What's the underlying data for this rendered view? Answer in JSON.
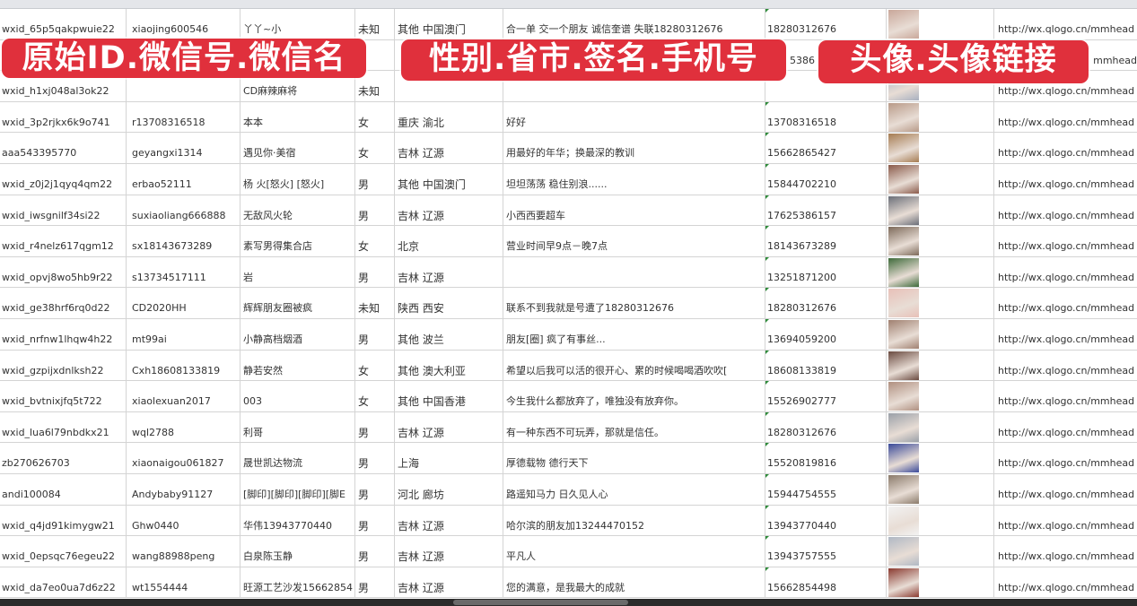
{
  "overlays": [
    "原始ID.微信号.微信名",
    "性别.省市.签名.手机号",
    "头像.头像链接"
  ],
  "link_text": "http://wx.qlogo.cn/mmhead",
  "colors": {
    "overlay": "#e0303c",
    "grid": "#d4d4d4",
    "text": "#333333"
  },
  "rows": [
    {
      "id": "wxid_65p5qakpwuie22",
      "wechat": "xiaojing600546",
      "name": "丫丫~小",
      "gender": "未知",
      "region": "其他 中国澳门",
      "signature": "合一单 交一个朋友 诚信奎谱 失联18280312676",
      "phone": "18280312676",
      "avatar": "#c9a79a"
    },
    {
      "id": "",
      "wechat": "",
      "name": "",
      "gender": "",
      "region": "",
      "signature": "",
      "phone": "5386",
      "avatar": "#7a8fb0"
    },
    {
      "id": "wxid_h1xj048al3ok22",
      "wechat": "",
      "name": "CD麻辣麻将",
      "gender": "未知",
      "region": "",
      "signature": "",
      "phone": "",
      "avatar": "#a8b0c0"
    },
    {
      "id": "wxid_3p2rjkx6k9o741",
      "wechat": "r13708316518",
      "name": "本本",
      "gender": "女",
      "region": "重庆 渝北",
      "signature": "好好",
      "phone": "13708316518",
      "avatar": "#b89a88"
    },
    {
      "id": "aaa543395770",
      "wechat": "geyangxi1314",
      "name": "遇见你·美宿",
      "gender": "女",
      "region": "吉林 辽源",
      "signature": "用最好的年华；换最深的教训",
      "phone": "15662865427",
      "avatar": "#a67c52"
    },
    {
      "id": "wxid_z0j2j1qyq4qm22",
      "wechat": "erbao52111",
      "name": "杨 火[怒火] [怒火]",
      "gender": "男",
      "region": "其他 中国澳门",
      "signature": "坦坦荡荡 稳住别浪......",
      "phone": "15844702210",
      "avatar": "#8a5a4a"
    },
    {
      "id": "wxid_iwsgnilf34si22",
      "wechat": "suxiaoliang666888",
      "name": "无敌风火轮",
      "gender": "男",
      "region": "吉林 辽源",
      "signature": "小西西要超车",
      "phone": "17625386157",
      "avatar": "#6a6e78"
    },
    {
      "id": "wxid_r4nelz617qgm12",
      "wechat": "sx18143673289",
      "name": "素写男得集合店",
      "gender": "女",
      "region": "北京",
      "signature": "营业时间早9点－晚7点",
      "phone": "18143673289",
      "avatar": "#7d6a5a"
    },
    {
      "id": "wxid_opvj8wo5hb9r22",
      "wechat": "s13734517111",
      "name": "岩",
      "gender": "男",
      "region": "吉林 辽源",
      "signature": "",
      "phone": "13251871200",
      "avatar": "#3e6a3a"
    },
    {
      "id": "wxid_ge38hrf6rq0d22",
      "wechat": "CD2020HH",
      "name": "辉辉朋友圈被疯",
      "gender": "未知",
      "region": "陕西 西安",
      "signature": "联系不到我就是号遭了18280312676",
      "phone": "18280312676",
      "avatar": "#e8c0b8"
    },
    {
      "id": "wxid_nrfnw1lhqw4h22",
      "wechat": "mt99ai",
      "name": "小静高档烟酒",
      "gender": "男",
      "region": "其他 波兰",
      "signature": "朋友[圈] 疯了有事丝...",
      "phone": "13694059200",
      "avatar": "#a08070"
    },
    {
      "id": "wxid_gzpijxdnlksh22",
      "wechat": "Cxh18608133819",
      "name": "静若安然",
      "gender": "女",
      "region": "其他 澳大利亚",
      "signature": "希望以后我可以活的很开心、累的时候喝喝酒吹吹[",
      "phone": "18608133819",
      "avatar": "#6a4a40"
    },
    {
      "id": "wxid_bvtnixjfq5t722",
      "wechat": "xiaolexuan2017",
      "name": "003",
      "gender": "女",
      "region": "其他 中国香港",
      "signature": "今生我什么都放弃了，唯独没有放弃你。",
      "phone": "15526902777",
      "avatar": "#b09080"
    },
    {
      "id": "wxid_lua6l79nbdkx21",
      "wechat": "wql2788",
      "name": "利哥",
      "gender": "男",
      "region": "吉林 辽源",
      "signature": "有一种东西不可玩弄，那就是信任。",
      "phone": "18280312676",
      "avatar": "#9aa0a8"
    },
    {
      "id": "zb270626703",
      "wechat": "xiaonaigou061827",
      "name": "晟世凯达物流",
      "gender": "男",
      "region": "上海",
      "signature": "厚德载物 德行天下",
      "phone": "15520819816",
      "avatar": "#3a4a9a"
    },
    {
      "id": "andi100084",
      "wechat": "Andybaby91127",
      "name": "[脚印][脚印][脚印][脚E",
      "gender": "男",
      "region": "河北 廊坊",
      "signature": "路遥知马力 日久见人心",
      "phone": "15944754555",
      "avatar": "#8a7a6a"
    },
    {
      "id": "wxid_q4jd91kimygw21",
      "wechat": "Ghw0440",
      "name": "华伟13943770440",
      "gender": "男",
      "region": "吉林 辽源",
      "signature": "哈尔滨的朋友加13244470152",
      "phone": "13943770440",
      "avatar": "#f2f2f2"
    },
    {
      "id": "wxid_0epsqc76egeu22",
      "wechat": "wang88988peng",
      "name": "白泉陈玉静",
      "gender": "男",
      "region": "吉林 辽源",
      "signature": "平凡人",
      "phone": "13943757555",
      "avatar": "#b0b8c4"
    },
    {
      "id": "wxid_da7eo0ua7d6z22",
      "wechat": "wt1554444",
      "name": "旺源工艺沙发15662854",
      "gender": "男",
      "region": "吉林 辽源",
      "signature": "您的满意，是我最大的成就",
      "phone": "15662854498",
      "avatar": "#8a3a30"
    }
  ]
}
